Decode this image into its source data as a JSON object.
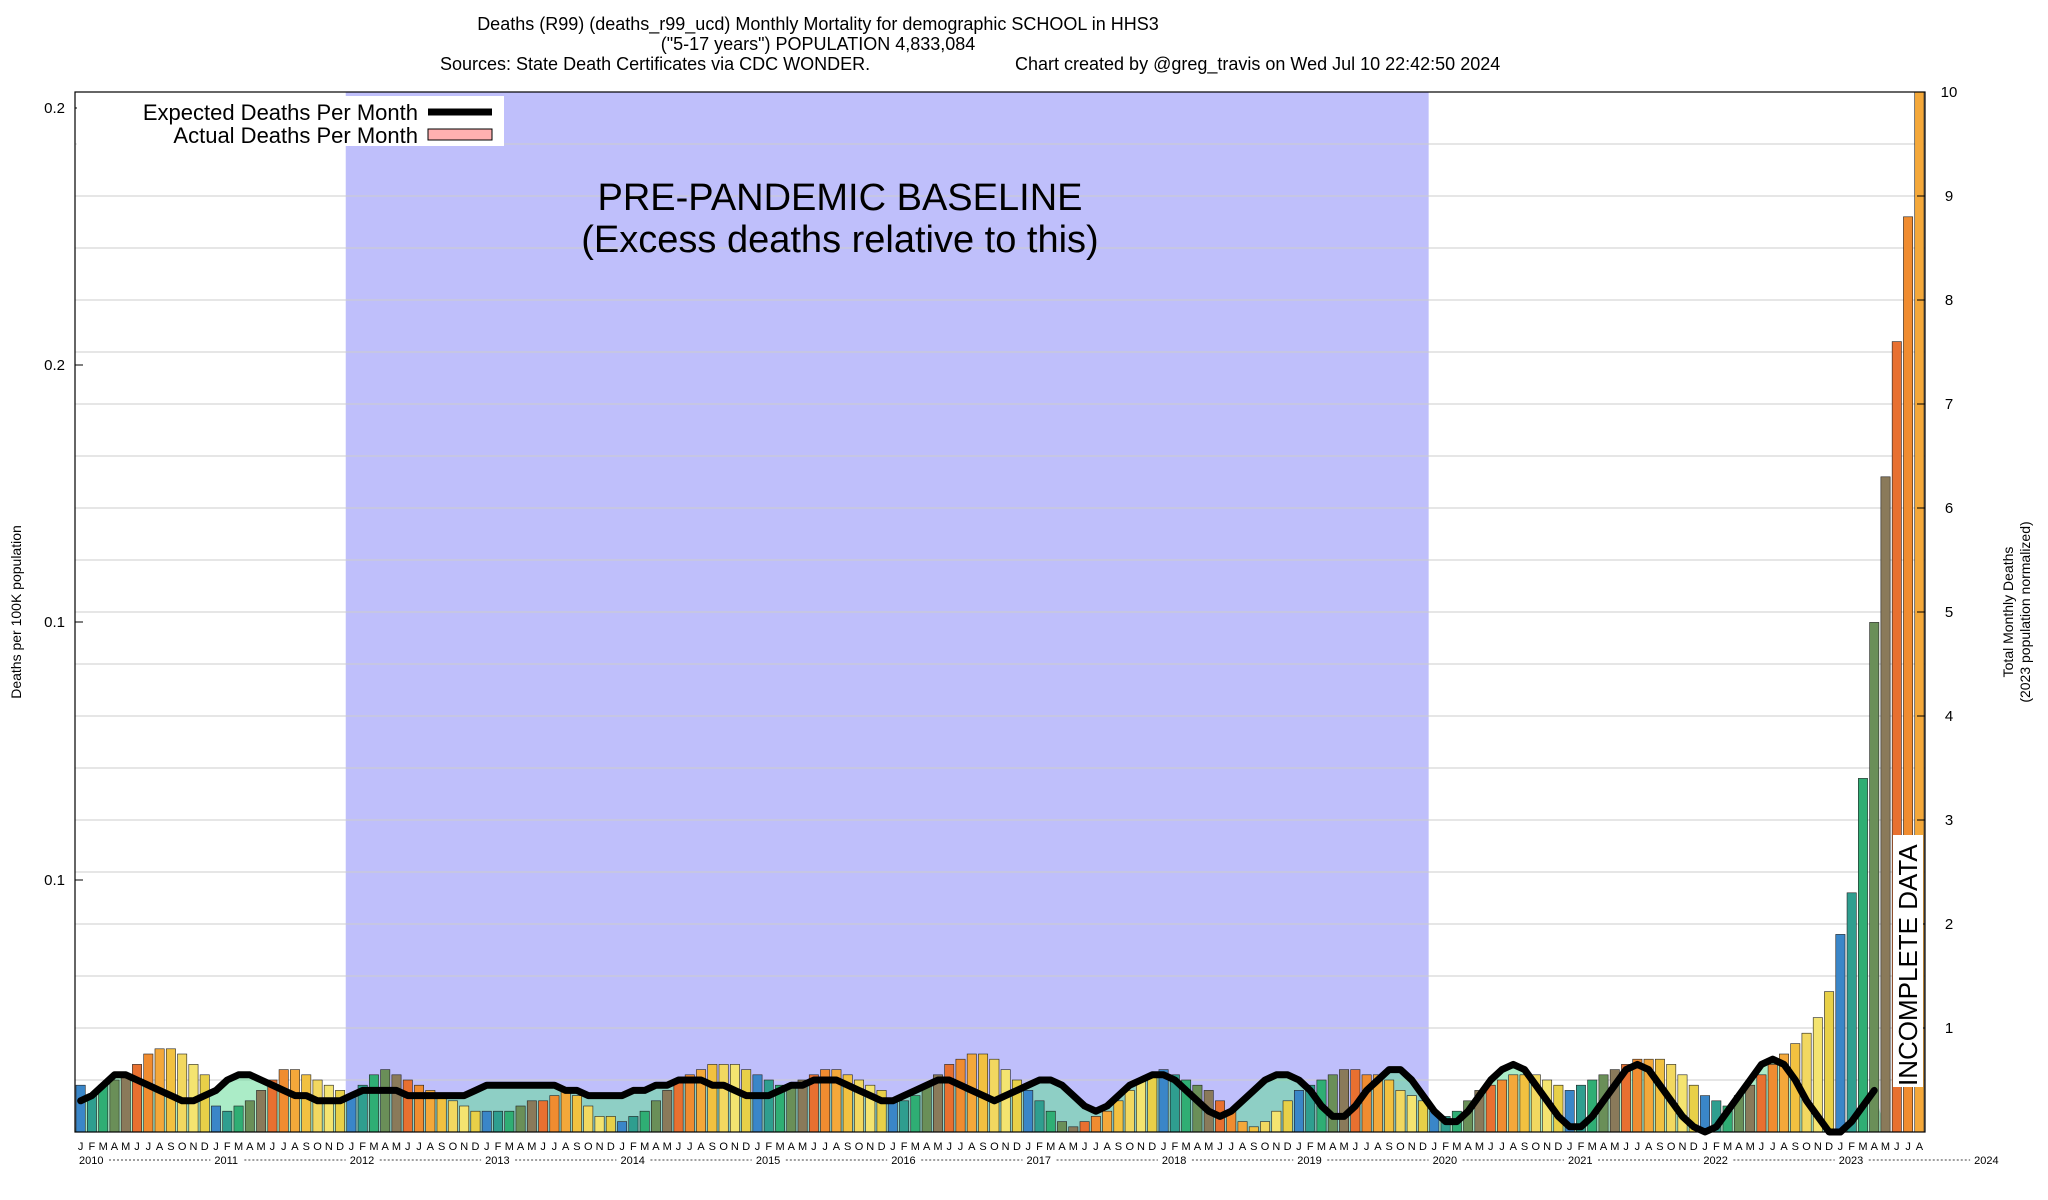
{
  "title": {
    "line1": "Deaths (R99) (deaths_r99_ucd) Monthly Mortality for demographic SCHOOL in HHS3",
    "line2": "(\"5-17 years\") POPULATION 4,833,084",
    "line3_left": "Sources: State Death Certificates via CDC WONDER.",
    "line3_right": "Chart created by @greg_travis on Wed Jul 10 22:42:50 2024"
  },
  "legend": {
    "expected": "Expected Deaths Per Month",
    "actual": "Actual Deaths Per Month"
  },
  "annotations": {
    "baseline_line1": "PRE-PANDEMIC BASELINE",
    "baseline_line2": "(Excess deaths relative to this)",
    "incomplete": "INCOMPLETE DATA"
  },
  "colors": {
    "baseline_band": "#bfbffb",
    "expected_line": "#000000",
    "legend_actual_swatch": "#ffb0b0",
    "incomplete_hatch": "#555555",
    "plateau_fill": "#66dd99"
  },
  "chart_data": {
    "type": "bar",
    "y_left": {
      "label": "Deaths per 100K population",
      "tick_labels": [
        "0.1",
        "0.1",
        "0.2",
        "0.2"
      ],
      "range": [
        0.0,
        0.21
      ]
    },
    "y_right": {
      "label_line1": "Total Monthly Deaths",
      "label_line2": "(2023 population normalized)",
      "tick_labels": [
        "1",
        "2",
        "3",
        "4",
        "5",
        "6",
        "7",
        "8",
        "9",
        "10"
      ],
      "range": [
        0,
        10
      ]
    },
    "x": {
      "start": "2010-01",
      "end": "2024-07",
      "month_letters": [
        "J",
        "F",
        "M",
        "A",
        "M",
        "J",
        "J",
        "A",
        "S",
        "O",
        "N",
        "D"
      ],
      "year_labels": [
        "2010",
        "2011",
        "2012",
        "2013",
        "2014",
        "2015",
        "2016",
        "2017",
        "2018",
        "2019",
        "2020",
        "2021",
        "2022",
        "2023",
        "2024"
      ]
    },
    "baseline_period": [
      "2012-01",
      "2019-12"
    ],
    "incomplete_period": [
      "2023-12",
      "2024-07"
    ],
    "series": [
      {
        "name": "Actual Deaths Per Month",
        "unit": "Total Monthly Deaths",
        "values": [
          0.45,
          0.35,
          0.45,
          0.5,
          0.55,
          0.65,
          0.75,
          0.8,
          0.8,
          0.75,
          0.65,
          0.55,
          0.25,
          0.2,
          0.25,
          0.3,
          0.4,
          0.5,
          0.6,
          0.6,
          0.55,
          0.5,
          0.45,
          0.4,
          0.35,
          0.45,
          0.55,
          0.6,
          0.55,
          0.5,
          0.45,
          0.4,
          0.35,
          0.3,
          0.25,
          0.2,
          0.2,
          0.2,
          0.2,
          0.25,
          0.3,
          0.3,
          0.35,
          0.4,
          0.35,
          0.25,
          0.15,
          0.15,
          0.1,
          0.15,
          0.2,
          0.3,
          0.4,
          0.5,
          0.55,
          0.6,
          0.65,
          0.65,
          0.65,
          0.6,
          0.55,
          0.5,
          0.45,
          0.45,
          0.5,
          0.55,
          0.6,
          0.6,
          0.55,
          0.5,
          0.45,
          0.4,
          0.3,
          0.3,
          0.35,
          0.45,
          0.55,
          0.65,
          0.7,
          0.75,
          0.75,
          0.7,
          0.6,
          0.5,
          0.4,
          0.3,
          0.2,
          0.1,
          0.05,
          0.1,
          0.15,
          0.2,
          0.3,
          0.4,
          0.5,
          0.55,
          0.6,
          0.55,
          0.5,
          0.45,
          0.4,
          0.3,
          0.2,
          0.1,
          0.05,
          0.1,
          0.2,
          0.3,
          0.4,
          0.45,
          0.5,
          0.55,
          0.6,
          0.6,
          0.55,
          0.55,
          0.5,
          0.4,
          0.35,
          0.3,
          0.2,
          0.15,
          0.2,
          0.3,
          0.4,
          0.45,
          0.5,
          0.55,
          0.55,
          0.55,
          0.5,
          0.45,
          0.4,
          0.45,
          0.5,
          0.55,
          0.6,
          0.65,
          0.7,
          0.7,
          0.7,
          0.65,
          0.55,
          0.45,
          0.35,
          0.3,
          0.25,
          0.35,
          0.45,
          0.55,
          0.65,
          0.75,
          0.85,
          0.95,
          1.1,
          1.35,
          1.9,
          2.3,
          3.4,
          4.9,
          6.3,
          7.6,
          8.8,
          10.0
        ]
      },
      {
        "name": "Expected Deaths Per Month",
        "unit": "Total Monthly Deaths",
        "values": [
          0.3,
          0.35,
          0.45,
          0.55,
          0.55,
          0.5,
          0.45,
          0.4,
          0.35,
          0.3,
          0.3,
          0.35,
          0.4,
          0.5,
          0.55,
          0.55,
          0.5,
          0.45,
          0.4,
          0.35,
          0.35,
          0.3,
          0.3,
          0.3,
          0.35,
          0.4,
          0.4,
          0.4,
          0.4,
          0.35,
          0.35,
          0.35,
          0.35,
          0.35,
          0.35,
          0.4,
          0.45,
          0.45,
          0.45,
          0.45,
          0.45,
          0.45,
          0.45,
          0.4,
          0.4,
          0.35,
          0.35,
          0.35,
          0.35,
          0.4,
          0.4,
          0.45,
          0.45,
          0.5,
          0.5,
          0.5,
          0.45,
          0.45,
          0.4,
          0.35,
          0.35,
          0.35,
          0.4,
          0.45,
          0.45,
          0.5,
          0.5,
          0.5,
          0.45,
          0.4,
          0.35,
          0.3,
          0.3,
          0.35,
          0.4,
          0.45,
          0.5,
          0.5,
          0.45,
          0.4,
          0.35,
          0.3,
          0.35,
          0.4,
          0.45,
          0.5,
          0.5,
          0.45,
          0.35,
          0.25,
          0.2,
          0.25,
          0.35,
          0.45,
          0.5,
          0.55,
          0.55,
          0.5,
          0.4,
          0.3,
          0.2,
          0.15,
          0.2,
          0.3,
          0.4,
          0.5,
          0.55,
          0.55,
          0.5,
          0.4,
          0.25,
          0.15,
          0.15,
          0.25,
          0.4,
          0.5,
          0.6,
          0.6,
          0.5,
          0.35,
          0.2,
          0.1,
          0.1,
          0.2,
          0.35,
          0.5,
          0.6,
          0.65,
          0.6,
          0.45,
          0.3,
          0.15,
          0.05,
          0.05,
          0.15,
          0.3,
          0.45,
          0.6,
          0.65,
          0.6,
          0.45,
          0.3,
          0.15,
          0.05,
          0.0,
          0.05,
          0.2,
          0.35,
          0.5,
          0.65,
          0.7,
          0.65,
          0.5,
          0.3,
          0.15,
          0.0,
          0.0,
          0.1,
          0.25,
          0.4
        ]
      }
    ]
  }
}
